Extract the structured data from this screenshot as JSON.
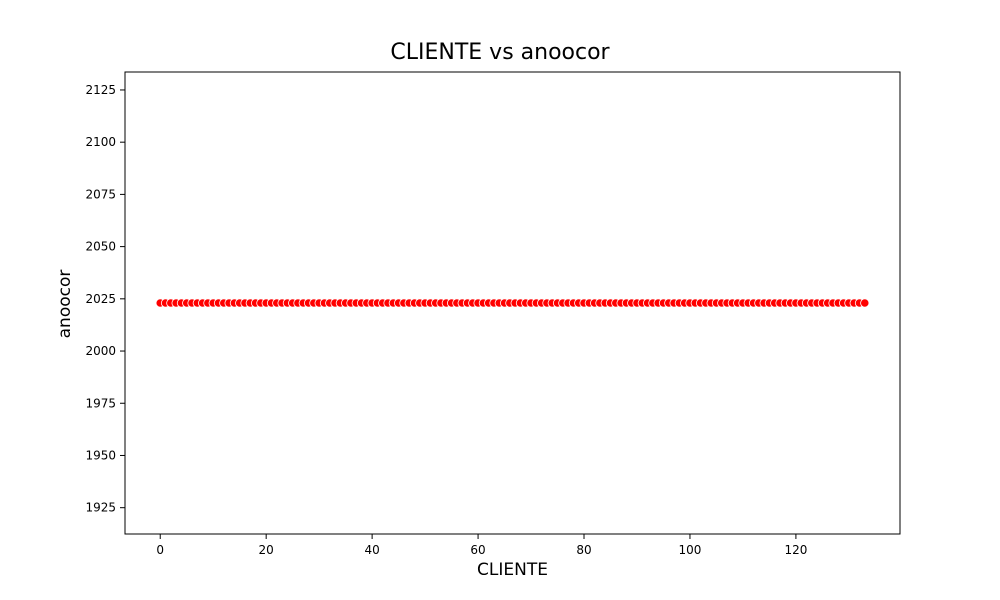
{
  "chart_data": {
    "type": "scatter",
    "title": "CLIENTE vs anoocor",
    "xlabel": "CLIENTE",
    "ylabel": "anoocor",
    "xlim": [
      -6.65,
      139.65
    ],
    "ylim": [
      1912.4,
      2133.6
    ],
    "xticks": [
      0,
      20,
      40,
      60,
      80,
      100,
      120
    ],
    "yticks": [
      1925,
      1950,
      1975,
      2000,
      2025,
      2050,
      2075,
      2100,
      2125
    ],
    "series": [
      {
        "color": "#ff0000",
        "x_start": 0,
        "x_end": 133,
        "y": 2023
      }
    ],
    "grid": false,
    "legend": false
  }
}
